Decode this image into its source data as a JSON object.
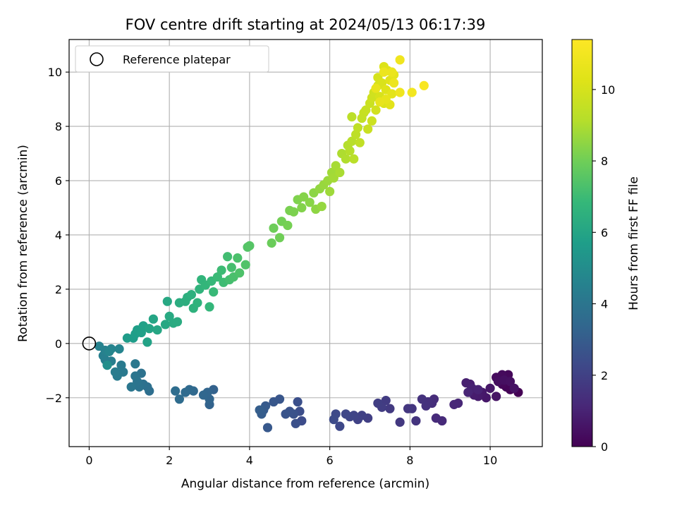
{
  "chart_data": {
    "type": "scatter",
    "title": "FOV centre drift starting at 2024/05/13 06:17:39",
    "xlabel": "Angular distance from reference (arcmin)",
    "ylabel": "Rotation from reference (arcmin)",
    "xlim": [
      -0.5,
      11.3
    ],
    "ylim": [
      -3.8,
      11.2
    ],
    "xticks": [
      0,
      2,
      4,
      6,
      8,
      10
    ],
    "yticks": [
      -2,
      0,
      2,
      4,
      6,
      8,
      10
    ],
    "xtick_labels": [
      "0",
      "2",
      "4",
      "6",
      "8",
      "10"
    ],
    "ytick_labels": [
      "−2",
      "0",
      "2",
      "4",
      "6",
      "8",
      "10"
    ],
    "grid": true,
    "legend": {
      "placement": "top-left",
      "label": "Reference platepar"
    },
    "reference_point": {
      "x": 0,
      "y": 0,
      "marker": "open-circle"
    },
    "colorbar": {
      "label": "Hours from first FF file",
      "range": [
        0,
        11.4
      ],
      "ticks": [
        0,
        2,
        4,
        6,
        8,
        10
      ],
      "tick_labels": [
        "0",
        "2",
        "4",
        "6",
        "8",
        "10"
      ],
      "colormap": "viridis"
    },
    "points": [
      {
        "x": 10.7,
        "y": -1.8,
        "t": 0.0
      },
      {
        "x": 10.5,
        "y": -1.7,
        "t": 0.05
      },
      {
        "x": 10.4,
        "y": -1.6,
        "t": 0.1
      },
      {
        "x": 10.3,
        "y": -1.5,
        "t": 0.15
      },
      {
        "x": 10.45,
        "y": -1.15,
        "t": 0.2
      },
      {
        "x": 10.3,
        "y": -1.15,
        "t": 0.25
      },
      {
        "x": 10.15,
        "y": -1.25,
        "t": 0.3
      },
      {
        "x": 10.2,
        "y": -1.4,
        "t": 0.35
      },
      {
        "x": 10.35,
        "y": -1.35,
        "t": 0.4
      },
      {
        "x": 10.5,
        "y": -1.4,
        "t": 0.45
      },
      {
        "x": 10.6,
        "y": -1.65,
        "t": 0.5
      },
      {
        "x": 10.15,
        "y": -1.95,
        "t": 0.55
      },
      {
        "x": 10.0,
        "y": -1.65,
        "t": 0.6
      },
      {
        "x": 9.9,
        "y": -2.0,
        "t": 0.65
      },
      {
        "x": 9.8,
        "y": -1.8,
        "t": 0.7
      },
      {
        "x": 9.7,
        "y": -1.95,
        "t": 0.75
      },
      {
        "x": 9.6,
        "y": -1.9,
        "t": 0.8
      },
      {
        "x": 9.5,
        "y": -1.5,
        "t": 0.85
      },
      {
        "x": 9.4,
        "y": -1.45,
        "t": 0.9
      },
      {
        "x": 9.55,
        "y": -1.65,
        "t": 0.95
      },
      {
        "x": 9.7,
        "y": -1.7,
        "t": 1.0
      },
      {
        "x": 9.45,
        "y": -1.8,
        "t": 1.05
      },
      {
        "x": 9.2,
        "y": -2.2,
        "t": 1.1
      },
      {
        "x": 9.1,
        "y": -2.25,
        "t": 1.15
      },
      {
        "x": 8.8,
        "y": -2.85,
        "t": 1.2
      },
      {
        "x": 8.65,
        "y": -2.75,
        "t": 1.25
      },
      {
        "x": 8.6,
        "y": -2.05,
        "t": 1.3
      },
      {
        "x": 8.55,
        "y": -2.2,
        "t": 1.35
      },
      {
        "x": 8.45,
        "y": -2.15,
        "t": 1.4
      },
      {
        "x": 8.4,
        "y": -2.3,
        "t": 1.45
      },
      {
        "x": 8.3,
        "y": -2.05,
        "t": 1.5
      },
      {
        "x": 8.15,
        "y": -2.85,
        "t": 1.55
      },
      {
        "x": 8.05,
        "y": -2.4,
        "t": 1.6
      },
      {
        "x": 7.95,
        "y": -2.4,
        "t": 1.65
      },
      {
        "x": 7.75,
        "y": -2.9,
        "t": 1.7
      },
      {
        "x": 7.5,
        "y": -2.4,
        "t": 1.75
      },
      {
        "x": 7.4,
        "y": -2.1,
        "t": 1.8
      },
      {
        "x": 7.3,
        "y": -2.35,
        "t": 1.85
      },
      {
        "x": 7.2,
        "y": -2.2,
        "t": 1.9
      },
      {
        "x": 6.95,
        "y": -2.75,
        "t": 1.95
      },
      {
        "x": 6.8,
        "y": -2.65,
        "t": 2.0
      },
      {
        "x": 6.7,
        "y": -2.8,
        "t": 2.05
      },
      {
        "x": 6.6,
        "y": -2.65,
        "t": 2.1
      },
      {
        "x": 6.5,
        "y": -2.7,
        "t": 2.15
      },
      {
        "x": 6.4,
        "y": -2.6,
        "t": 2.2
      },
      {
        "x": 6.25,
        "y": -3.05,
        "t": 2.25
      },
      {
        "x": 6.15,
        "y": -2.6,
        "t": 2.3
      },
      {
        "x": 6.1,
        "y": -2.8,
        "t": 2.35
      },
      {
        "x": 5.3,
        "y": -2.85,
        "t": 2.4
      },
      {
        "x": 5.25,
        "y": -2.5,
        "t": 2.45
      },
      {
        "x": 5.2,
        "y": -2.15,
        "t": 2.5
      },
      {
        "x": 5.15,
        "y": -2.95,
        "t": 2.55
      },
      {
        "x": 5.1,
        "y": -2.6,
        "t": 2.6
      },
      {
        "x": 5.0,
        "y": -2.5,
        "t": 2.65
      },
      {
        "x": 4.9,
        "y": -2.6,
        "t": 2.7
      },
      {
        "x": 4.75,
        "y": -2.05,
        "t": 2.75
      },
      {
        "x": 4.6,
        "y": -2.15,
        "t": 2.8
      },
      {
        "x": 4.45,
        "y": -3.1,
        "t": 2.85
      },
      {
        "x": 4.4,
        "y": -2.3,
        "t": 2.9
      },
      {
        "x": 4.35,
        "y": -2.45,
        "t": 2.95
      },
      {
        "x": 4.3,
        "y": -2.6,
        "t": 3.0
      },
      {
        "x": 4.25,
        "y": -2.45,
        "t": 3.05
      },
      {
        "x": 3.1,
        "y": -1.7,
        "t": 3.2
      },
      {
        "x": 3.0,
        "y": -2.25,
        "t": 3.25
      },
      {
        "x": 3.0,
        "y": -2.05,
        "t": 3.3
      },
      {
        "x": 2.95,
        "y": -1.8,
        "t": 3.35
      },
      {
        "x": 2.85,
        "y": -1.9,
        "t": 3.4
      },
      {
        "x": 2.6,
        "y": -1.75,
        "t": 3.45
      },
      {
        "x": 2.5,
        "y": -1.7,
        "t": 3.5
      },
      {
        "x": 2.4,
        "y": -1.8,
        "t": 3.55
      },
      {
        "x": 2.25,
        "y": -2.05,
        "t": 3.6
      },
      {
        "x": 2.15,
        "y": -1.75,
        "t": 3.65
      },
      {
        "x": 1.5,
        "y": -1.75,
        "t": 3.7
      },
      {
        "x": 1.45,
        "y": -1.6,
        "t": 3.75
      },
      {
        "x": 1.35,
        "y": -1.5,
        "t": 3.8
      },
      {
        "x": 1.3,
        "y": -1.1,
        "t": 3.85
      },
      {
        "x": 1.25,
        "y": -1.6,
        "t": 3.9
      },
      {
        "x": 1.2,
        "y": -1.4,
        "t": 3.95
      },
      {
        "x": 1.15,
        "y": -1.2,
        "t": 4.0
      },
      {
        "x": 1.05,
        "y": -1.6,
        "t": 4.05
      },
      {
        "x": 1.15,
        "y": -0.75,
        "t": 4.1
      },
      {
        "x": 0.85,
        "y": -1.05,
        "t": 4.15
      },
      {
        "x": 0.8,
        "y": -0.8,
        "t": 4.2
      },
      {
        "x": 0.7,
        "y": -1.2,
        "t": 4.25
      },
      {
        "x": 0.65,
        "y": -1.05,
        "t": 4.3
      },
      {
        "x": 0.55,
        "y": -0.65,
        "t": 4.35
      },
      {
        "x": 0.4,
        "y": -0.6,
        "t": 4.4
      },
      {
        "x": 0.35,
        "y": -0.45,
        "t": 4.45
      },
      {
        "x": 0.4,
        "y": -0.25,
        "t": 4.5
      },
      {
        "x": 0.25,
        "y": -0.1,
        "t": 4.55
      },
      {
        "x": 0.55,
        "y": -0.2,
        "t": 4.6
      },
      {
        "x": 0.75,
        "y": -0.2,
        "t": 4.65
      },
      {
        "x": 0.5,
        "y": -0.3,
        "t": 4.7
      },
      {
        "x": 0.45,
        "y": -0.8,
        "t": 5.1
      },
      {
        "x": 0.95,
        "y": 0.2,
        "t": 5.6
      },
      {
        "x": 1.1,
        "y": 0.2,
        "t": 5.65
      },
      {
        "x": 1.15,
        "y": 0.35,
        "t": 5.7
      },
      {
        "x": 1.2,
        "y": 0.5,
        "t": 5.75
      },
      {
        "x": 1.3,
        "y": 0.4,
        "t": 5.8
      },
      {
        "x": 1.35,
        "y": 0.65,
        "t": 5.85
      },
      {
        "x": 1.45,
        "y": 0.05,
        "t": 5.9
      },
      {
        "x": 1.5,
        "y": 0.55,
        "t": 5.95
      },
      {
        "x": 1.6,
        "y": 0.9,
        "t": 6.0
      },
      {
        "x": 1.7,
        "y": 0.5,
        "t": 6.05
      },
      {
        "x": 1.9,
        "y": 0.7,
        "t": 6.1
      },
      {
        "x": 1.95,
        "y": 1.55,
        "t": 6.15
      },
      {
        "x": 2.0,
        "y": 1.0,
        "t": 6.2
      },
      {
        "x": 2.1,
        "y": 0.75,
        "t": 6.25
      },
      {
        "x": 2.2,
        "y": 0.8,
        "t": 6.3
      },
      {
        "x": 2.25,
        "y": 1.5,
        "t": 6.35
      },
      {
        "x": 2.4,
        "y": 1.55,
        "t": 6.4
      },
      {
        "x": 2.45,
        "y": 1.7,
        "t": 6.45
      },
      {
        "x": 2.55,
        "y": 1.8,
        "t": 6.5
      },
      {
        "x": 2.6,
        "y": 1.3,
        "t": 6.55
      },
      {
        "x": 2.7,
        "y": 1.5,
        "t": 6.6
      },
      {
        "x": 2.75,
        "y": 2.0,
        "t": 6.65
      },
      {
        "x": 2.8,
        "y": 2.35,
        "t": 6.7
      },
      {
        "x": 2.9,
        "y": 2.15,
        "t": 6.75
      },
      {
        "x": 3.0,
        "y": 1.35,
        "t": 6.8
      },
      {
        "x": 3.05,
        "y": 2.3,
        "t": 6.85
      },
      {
        "x": 3.1,
        "y": 1.9,
        "t": 6.9
      },
      {
        "x": 3.2,
        "y": 2.45,
        "t": 6.95
      },
      {
        "x": 3.3,
        "y": 2.7,
        "t": 7.0
      },
      {
        "x": 3.35,
        "y": 2.25,
        "t": 7.05
      },
      {
        "x": 3.45,
        "y": 3.2,
        "t": 7.1
      },
      {
        "x": 3.5,
        "y": 2.35,
        "t": 7.15
      },
      {
        "x": 3.55,
        "y": 2.8,
        "t": 7.2
      },
      {
        "x": 3.6,
        "y": 2.45,
        "t": 7.25
      },
      {
        "x": 3.7,
        "y": 3.15,
        "t": 7.3
      },
      {
        "x": 3.75,
        "y": 2.6,
        "t": 7.35
      },
      {
        "x": 3.9,
        "y": 2.9,
        "t": 7.4
      },
      {
        "x": 3.95,
        "y": 3.55,
        "t": 7.45
      },
      {
        "x": 4.0,
        "y": 3.6,
        "t": 7.5
      },
      {
        "x": 4.55,
        "y": 3.7,
        "t": 7.9
      },
      {
        "x": 4.6,
        "y": 4.25,
        "t": 7.95
      },
      {
        "x": 4.75,
        "y": 3.9,
        "t": 8.0
      },
      {
        "x": 4.8,
        "y": 4.5,
        "t": 8.05
      },
      {
        "x": 4.95,
        "y": 4.35,
        "t": 8.1
      },
      {
        "x": 5.0,
        "y": 4.9,
        "t": 8.15
      },
      {
        "x": 5.1,
        "y": 4.85,
        "t": 8.2
      },
      {
        "x": 5.2,
        "y": 5.3,
        "t": 8.25
      },
      {
        "x": 5.3,
        "y": 5.0,
        "t": 8.3
      },
      {
        "x": 5.35,
        "y": 5.4,
        "t": 8.35
      },
      {
        "x": 5.5,
        "y": 5.2,
        "t": 8.4
      },
      {
        "x": 5.6,
        "y": 5.55,
        "t": 8.45
      },
      {
        "x": 5.65,
        "y": 4.95,
        "t": 8.5
      },
      {
        "x": 5.75,
        "y": 5.7,
        "t": 8.55
      },
      {
        "x": 5.8,
        "y": 5.05,
        "t": 8.6
      },
      {
        "x": 5.85,
        "y": 5.85,
        "t": 8.65
      },
      {
        "x": 5.95,
        "y": 6.0,
        "t": 8.7
      },
      {
        "x": 6.0,
        "y": 5.6,
        "t": 8.75
      },
      {
        "x": 6.05,
        "y": 6.3,
        "t": 8.8
      },
      {
        "x": 6.1,
        "y": 6.1,
        "t": 8.85
      },
      {
        "x": 6.15,
        "y": 6.55,
        "t": 8.9
      },
      {
        "x": 6.25,
        "y": 6.3,
        "t": 8.95
      },
      {
        "x": 6.3,
        "y": 7.0,
        "t": 9.0
      },
      {
        "x": 6.4,
        "y": 6.8,
        "t": 9.05
      },
      {
        "x": 6.45,
        "y": 7.3,
        "t": 9.1
      },
      {
        "x": 6.5,
        "y": 7.1,
        "t": 9.15
      },
      {
        "x": 6.55,
        "y": 7.45,
        "t": 9.2
      },
      {
        "x": 6.6,
        "y": 6.8,
        "t": 9.25
      },
      {
        "x": 6.55,
        "y": 8.35,
        "t": 9.3
      },
      {
        "x": 6.65,
        "y": 7.7,
        "t": 9.35
      },
      {
        "x": 6.7,
        "y": 7.95,
        "t": 9.4
      },
      {
        "x": 6.75,
        "y": 7.4,
        "t": 9.45
      },
      {
        "x": 6.8,
        "y": 8.3,
        "t": 9.5
      },
      {
        "x": 6.85,
        "y": 8.5,
        "t": 9.55
      },
      {
        "x": 6.9,
        "y": 8.6,
        "t": 9.6
      },
      {
        "x": 6.95,
        "y": 7.9,
        "t": 9.65
      },
      {
        "x": 7.0,
        "y": 8.85,
        "t": 9.7
      },
      {
        "x": 7.05,
        "y": 8.2,
        "t": 9.75
      },
      {
        "x": 7.05,
        "y": 9.05,
        "t": 9.8
      },
      {
        "x": 7.1,
        "y": 9.25,
        "t": 9.85
      },
      {
        "x": 7.15,
        "y": 8.6,
        "t": 9.9
      },
      {
        "x": 7.2,
        "y": 9.5,
        "t": 9.95
      },
      {
        "x": 7.2,
        "y": 9.8,
        "t": 10.0
      },
      {
        "x": 7.25,
        "y": 9.1,
        "t": 10.05
      },
      {
        "x": 7.3,
        "y": 9.6,
        "t": 10.1
      },
      {
        "x": 7.35,
        "y": 8.85,
        "t": 10.15
      },
      {
        "x": 7.35,
        "y": 10.2,
        "t": 10.2
      },
      {
        "x": 7.4,
        "y": 9.35,
        "t": 10.25
      },
      {
        "x": 7.45,
        "y": 10.05,
        "t": 10.3
      },
      {
        "x": 7.5,
        "y": 9.7,
        "t": 10.35
      },
      {
        "x": 7.5,
        "y": 8.8,
        "t": 10.4
      },
      {
        "x": 7.55,
        "y": 9.2,
        "t": 10.45
      },
      {
        "x": 7.6,
        "y": 9.9,
        "t": 10.5
      },
      {
        "x": 7.4,
        "y": 9.0,
        "t": 10.55
      },
      {
        "x": 7.25,
        "y": 8.9,
        "t": 10.6
      },
      {
        "x": 7.15,
        "y": 9.4,
        "t": 10.65
      },
      {
        "x": 7.55,
        "y": 10.0,
        "t": 10.7
      },
      {
        "x": 7.35,
        "y": 10.0,
        "t": 10.75
      },
      {
        "x": 7.6,
        "y": 9.6,
        "t": 10.8
      },
      {
        "x": 7.75,
        "y": 9.25,
        "t": 10.85
      },
      {
        "x": 7.75,
        "y": 10.45,
        "t": 10.9
      },
      {
        "x": 8.05,
        "y": 9.25,
        "t": 11.0
      },
      {
        "x": 8.35,
        "y": 9.5,
        "t": 11.2
      }
    ]
  }
}
